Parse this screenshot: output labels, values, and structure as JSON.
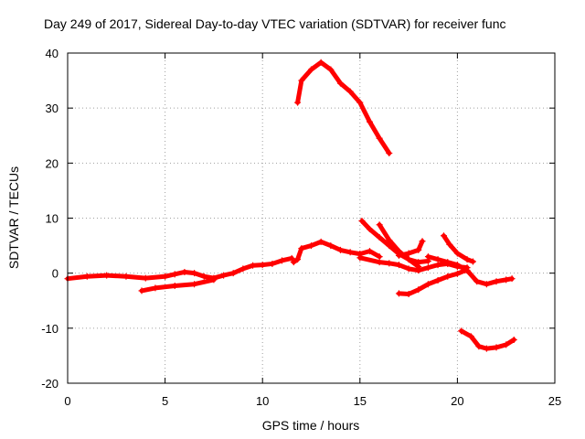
{
  "chart_data": {
    "type": "scatter",
    "title": "Day 249 of 2017, Sidereal Day-to-day VTEC variation (SDTVAR) for receiver func",
    "xlabel": "GPS time / hours",
    "ylabel": "SDTVAR / TECUs",
    "xlim": [
      0,
      25
    ],
    "ylim": [
      -20,
      40
    ],
    "xticks": [
      0,
      5,
      10,
      15,
      20,
      25
    ],
    "yticks": [
      -20,
      -10,
      0,
      10,
      20,
      30,
      40
    ],
    "grid": true,
    "marker": "+",
    "series_color": "#ff0000",
    "series": [
      {
        "name": "track-1",
        "points": [
          [
            0.0,
            -1.0
          ],
          [
            1.0,
            -0.6
          ],
          [
            2.0,
            -0.4
          ],
          [
            3.0,
            -0.6
          ],
          [
            4.0,
            -0.9
          ],
          [
            5.0,
            -0.6
          ],
          [
            5.5,
            -0.2
          ],
          [
            6.0,
            0.2
          ],
          [
            6.5,
            0.0
          ],
          [
            7.0,
            -0.6
          ],
          [
            7.5,
            -0.9
          ],
          [
            8.0,
            -0.4
          ],
          [
            8.5,
            0.0
          ],
          [
            9.0,
            0.8
          ],
          [
            9.5,
            1.4
          ],
          [
            10.0,
            1.5
          ],
          [
            10.5,
            1.7
          ],
          [
            11.0,
            2.3
          ],
          [
            11.5,
            2.7
          ]
        ]
      },
      {
        "name": "track-2",
        "points": [
          [
            3.8,
            -3.2
          ],
          [
            4.5,
            -2.7
          ],
          [
            5.5,
            -2.3
          ],
          [
            6.5,
            -2.0
          ],
          [
            7.5,
            -1.2
          ]
        ]
      },
      {
        "name": "track-3",
        "points": [
          [
            11.6,
            2.0
          ],
          [
            11.8,
            2.5
          ],
          [
            12.0,
            4.5
          ],
          [
            12.5,
            5.0
          ],
          [
            13.0,
            5.7
          ],
          [
            13.5,
            5.0
          ],
          [
            14.0,
            4.2
          ],
          [
            14.5,
            3.8
          ],
          [
            15.0,
            3.5
          ],
          [
            15.5,
            4.0
          ],
          [
            16.0,
            3.0
          ]
        ]
      },
      {
        "name": "track-4",
        "points": [
          [
            11.8,
            31.0
          ],
          [
            12.0,
            35.0
          ],
          [
            12.5,
            37.0
          ],
          [
            13.0,
            38.3
          ],
          [
            13.5,
            37.0
          ],
          [
            14.0,
            34.5
          ],
          [
            14.5,
            33.0
          ],
          [
            15.0,
            31.0
          ],
          [
            15.5,
            27.5
          ],
          [
            16.0,
            24.5
          ],
          [
            16.5,
            21.8
          ]
        ]
      },
      {
        "name": "track-5",
        "points": [
          [
            15.1,
            9.5
          ],
          [
            15.5,
            8.0
          ],
          [
            16.0,
            6.5
          ],
          [
            16.5,
            5.0
          ],
          [
            17.0,
            3.5
          ],
          [
            17.5,
            2.5
          ],
          [
            18.0,
            2.0
          ],
          [
            18.5,
            2.2
          ]
        ]
      },
      {
        "name": "track-6",
        "points": [
          [
            16.0,
            8.8
          ],
          [
            16.5,
            6.0
          ],
          [
            17.0,
            4.0
          ],
          [
            17.5,
            2.5
          ],
          [
            18.0,
            1.2
          ]
        ]
      },
      {
        "name": "track-7",
        "points": [
          [
            15.0,
            2.8
          ],
          [
            16.0,
            2.0
          ],
          [
            16.5,
            1.8
          ],
          [
            17.0,
            1.5
          ],
          [
            17.5,
            0.8
          ],
          [
            18.0,
            0.5
          ],
          [
            18.5,
            1.0
          ],
          [
            19.0,
            1.5
          ],
          [
            19.5,
            1.7
          ],
          [
            20.0,
            1.2
          ],
          [
            20.5,
            1.0
          ]
        ]
      },
      {
        "name": "track-8",
        "points": [
          [
            17.0,
            3.2
          ],
          [
            17.5,
            3.6
          ],
          [
            18.0,
            4.2
          ],
          [
            18.2,
            5.8
          ]
        ]
      },
      {
        "name": "track-9",
        "points": [
          [
            17.0,
            -3.7
          ],
          [
            17.5,
            -3.8
          ],
          [
            18.0,
            -3.0
          ],
          [
            18.5,
            -2.0
          ],
          [
            19.0,
            -1.3
          ],
          [
            19.5,
            -0.6
          ],
          [
            20.0,
            -0.1
          ],
          [
            20.4,
            0.5
          ]
        ]
      },
      {
        "name": "track-10",
        "points": [
          [
            19.3,
            6.8
          ],
          [
            19.6,
            5.2
          ],
          [
            20.0,
            3.6
          ],
          [
            20.5,
            2.5
          ],
          [
            20.8,
            2.1
          ]
        ]
      },
      {
        "name": "track-11",
        "points": [
          [
            18.5,
            3.0
          ],
          [
            19.0,
            2.5
          ],
          [
            19.5,
            2.0
          ],
          [
            20.0,
            1.5
          ],
          [
            20.5,
            0.5
          ],
          [
            21.0,
            -1.5
          ],
          [
            21.5,
            -2.0
          ],
          [
            22.0,
            -1.5
          ],
          [
            22.5,
            -1.2
          ],
          [
            22.8,
            -1.0
          ]
        ]
      },
      {
        "name": "track-12",
        "points": [
          [
            20.2,
            -10.5
          ],
          [
            20.7,
            -11.5
          ],
          [
            21.1,
            -13.3
          ],
          [
            21.5,
            -13.7
          ],
          [
            22.0,
            -13.5
          ],
          [
            22.5,
            -13.0
          ],
          [
            22.9,
            -12.1
          ]
        ]
      }
    ]
  }
}
